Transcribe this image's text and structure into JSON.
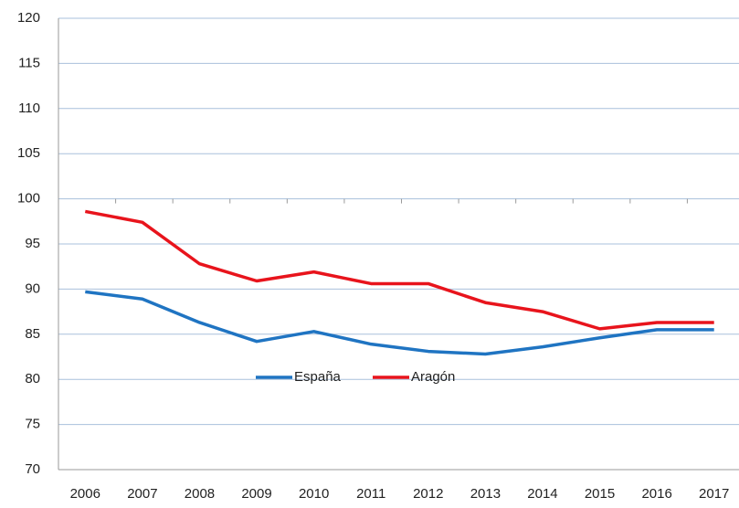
{
  "chart_data": {
    "type": "line",
    "categories": [
      "2006",
      "2007",
      "2008",
      "2009",
      "2010",
      "2011",
      "2012",
      "2013",
      "2014",
      "2015",
      "2016",
      "2017"
    ],
    "series": [
      {
        "name": "España",
        "color": "#1f74c2",
        "values": [
          89.7,
          88.9,
          86.3,
          84.2,
          85.3,
          83.9,
          83.1,
          82.8,
          83.6,
          84.6,
          85.5,
          85.5
        ]
      },
      {
        "name": "Aragón",
        "color": "#e8141c",
        "values": [
          98.6,
          97.4,
          92.8,
          90.9,
          91.9,
          90.6,
          90.6,
          88.5,
          87.5,
          85.6,
          86.3,
          86.3
        ]
      }
    ],
    "ylim": [
      70,
      120
    ],
    "yticks": [
      70,
      75,
      80,
      85,
      90,
      95,
      100,
      105,
      110,
      115,
      120
    ],
    "grid": true,
    "legend": "center"
  }
}
